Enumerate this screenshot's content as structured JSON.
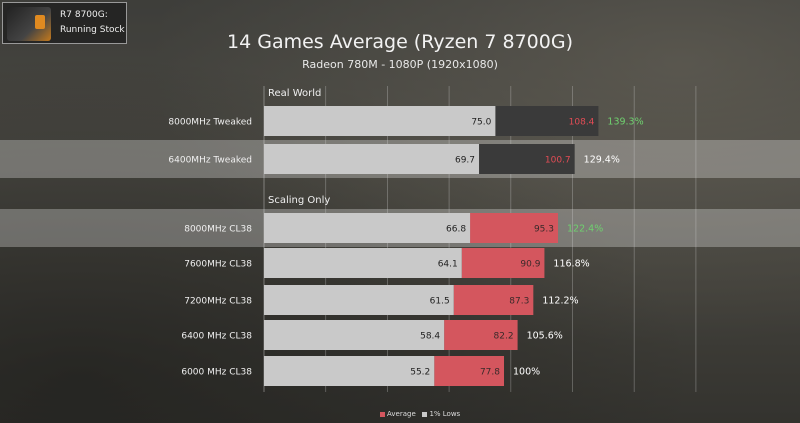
{
  "badge": {
    "line1": "R7 8700G:",
    "line2": "Running Stock"
  },
  "chart_data": {
    "type": "bar",
    "orientation": "horizontal",
    "title": "14 Games Average (Ryzen 7 8700G)",
    "subtitle": "Radeon 780M - 1080P (1920x1080)",
    "sections": [
      "Real World",
      "Scaling Only"
    ],
    "categories": [
      "8000MHz Tweaked",
      "6400MHz Tweaked",
      "8000MHz CL38",
      "7600MHz CL38",
      "7200MHz CL38",
      "6400 MHz CL38",
      "6000 MHz CL38"
    ],
    "section_of_category": [
      0,
      0,
      1,
      1,
      1,
      1,
      1
    ],
    "highlighted": [
      false,
      true,
      true,
      false,
      false,
      false,
      false
    ],
    "series": [
      {
        "name": "1% Lows",
        "values": [
          75.0,
          69.7,
          66.8,
          64.1,
          61.5,
          58.4,
          55.2
        ]
      },
      {
        "name": "Average",
        "values": [
          108.4,
          100.7,
          95.3,
          90.9,
          87.3,
          82.2,
          77.8
        ]
      }
    ],
    "value_labels": {
      "lows": [
        "75.0",
        "69.7",
        "66.8",
        "64.1",
        "61.5",
        "58.4",
        "55.2"
      ],
      "avg": [
        "108.4",
        "100.7",
        "95.3",
        "90.9",
        "87.3",
        "82.2",
        "77.8"
      ]
    },
    "percent_labels": [
      "139.3%",
      "129.4%",
      "122.4%",
      "116.8%",
      "112.2%",
      "105.6%",
      "100%"
    ],
    "percent_colors": [
      "#6fd06f",
      "#ffffff",
      "#6fd06f",
      "#ffffff",
      "#ffffff",
      "#ffffff",
      "#ffffff"
    ],
    "average_bar_colors": [
      "#3a3a3a",
      "#3a3a3a",
      "#d4565e",
      "#d4565e",
      "#d4565e",
      "#d4565e",
      "#d4565e"
    ],
    "average_label_colors": [
      "#e24c55",
      "#e24c55",
      "#3a2a2a",
      "#3a2a2a",
      "#3a2a2a",
      "#3a2a2a",
      "#3a2a2a"
    ],
    "lows_bar_color": "#c9c9c9",
    "xlim": [
      0,
      140
    ],
    "grid": true,
    "legend": [
      "Average",
      "1% Lows"
    ],
    "legend_colors": [
      "#d4565e",
      "#c9c9c9"
    ],
    "legend_position": "bottom-center"
  }
}
